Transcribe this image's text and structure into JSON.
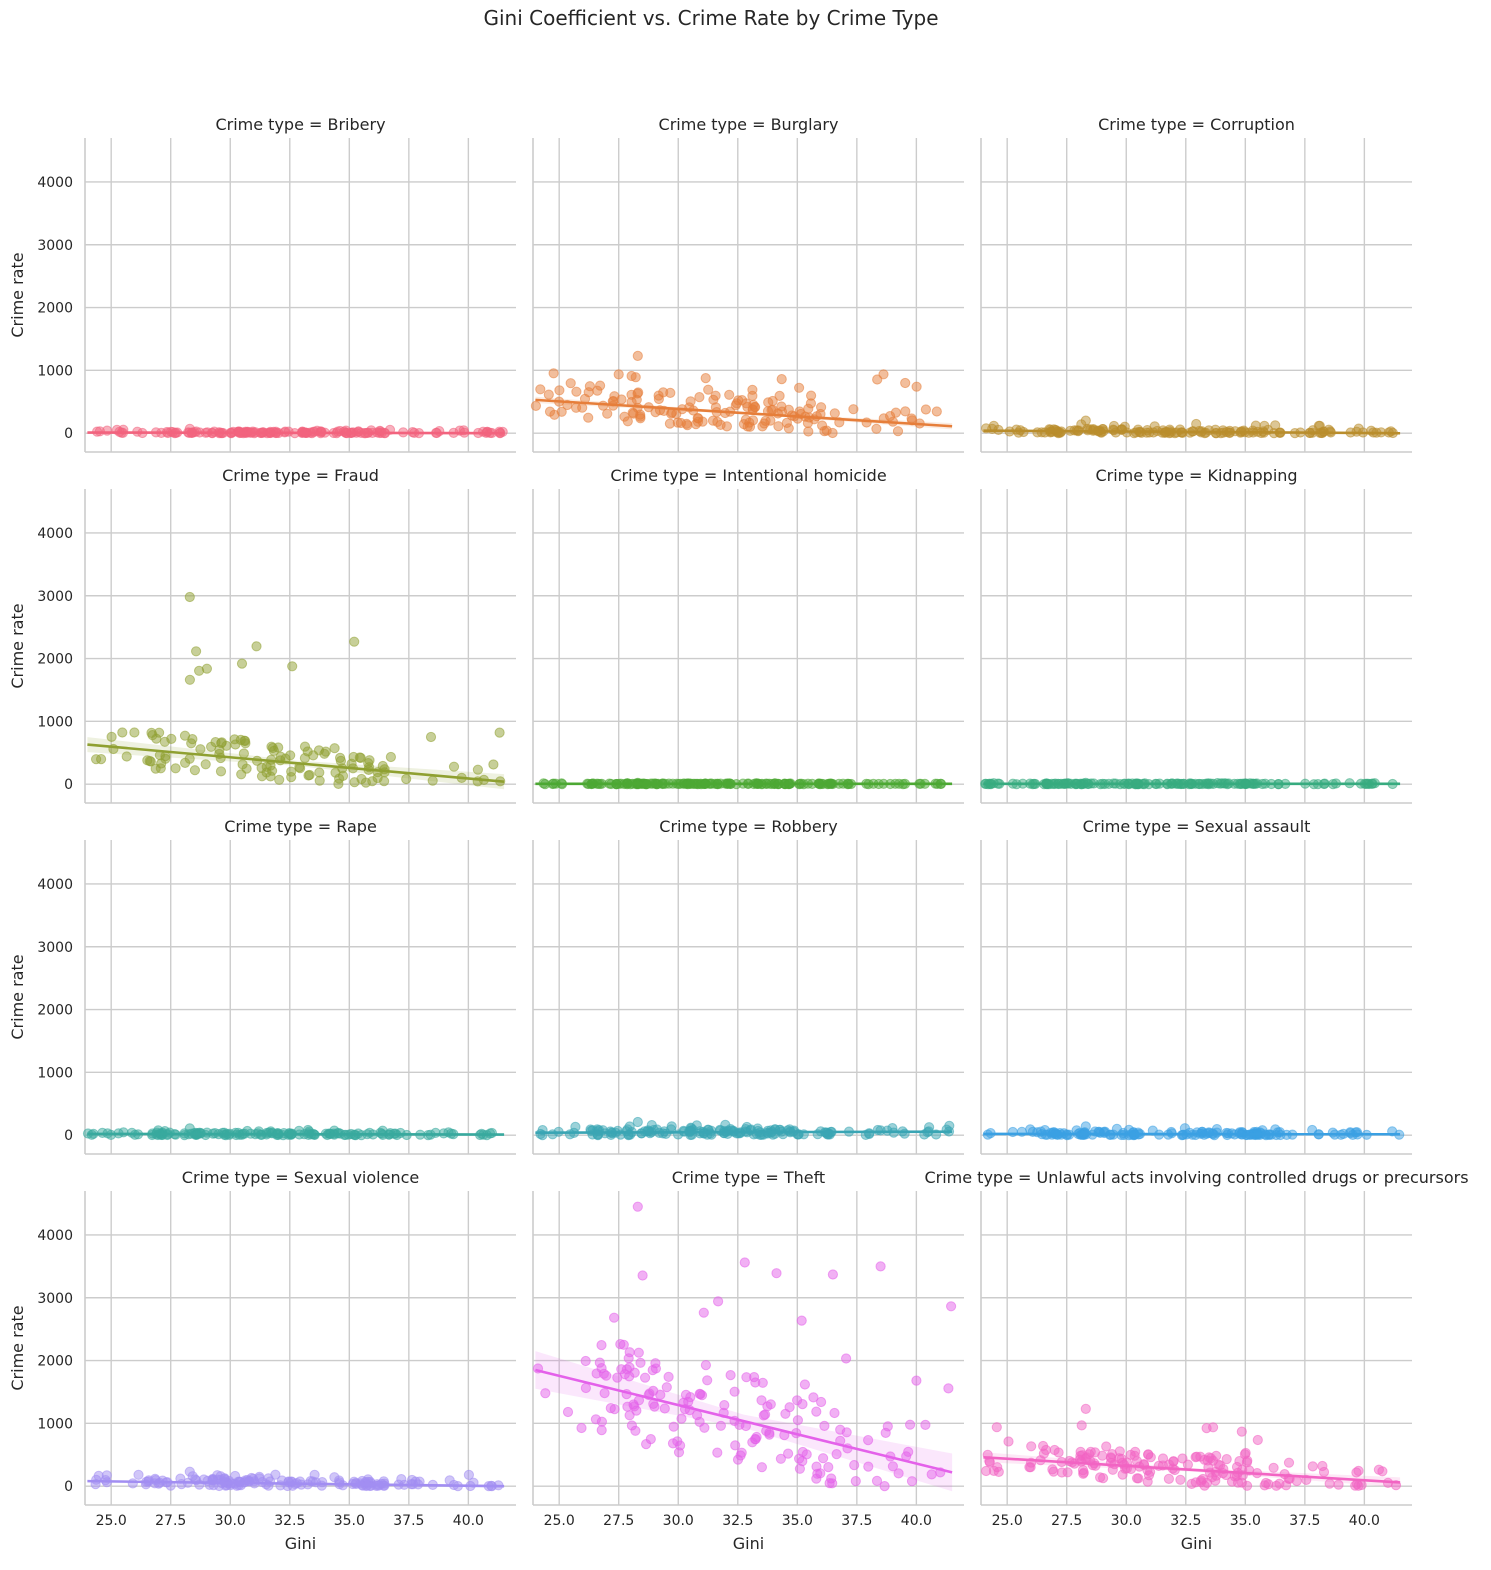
{
  "chart_data": {
    "type": "scatter",
    "subtype": "facet-grid scatter with linear regression fit and confidence band",
    "title": "Gini Coefficient vs. Crime Rate by Crime Type",
    "xlabel": "Gini",
    "ylabel": "Crime rate",
    "facet_prefix": "Crime type = ",
    "xlim": [
      23.9,
      42.0
    ],
    "ylim": [
      -300,
      4700
    ],
    "xticks": [
      25.0,
      27.5,
      30.0,
      32.5,
      35.0,
      37.5,
      40.0
    ],
    "xtick_labels": [
      "25.0",
      "27.5",
      "30.0",
      "32.5",
      "35.0",
      "37.5",
      "40.0"
    ],
    "yticks": [
      0,
      1000,
      2000,
      3000,
      4000
    ],
    "ytick_labels": [
      "0",
      "1000",
      "2000",
      "3000",
      "4000"
    ],
    "grid": true,
    "legend": "none",
    "panels": [
      {
        "label": "Bribery",
        "color": "#f2637e",
        "fit": [
          [
            24.0,
            10
          ],
          [
            41.5,
            0
          ]
        ],
        "band": 15,
        "spread": 25,
        "base": 10,
        "peak": 70,
        "n": 150,
        "seed": 11
      },
      {
        "label": "Burglary",
        "color": "#e67e3a",
        "fit": [
          [
            24.0,
            530
          ],
          [
            41.5,
            110
          ]
        ],
        "band": 50,
        "spread": 250,
        "base": 300,
        "peak": 1230,
        "n": 160,
        "seed": 23
      },
      {
        "label": "Corruption",
        "color": "#b98d2c",
        "fit": [
          [
            24.0,
            40
          ],
          [
            41.5,
            0
          ]
        ],
        "band": 15,
        "spread": 40,
        "base": 40,
        "peak": 200,
        "n": 150,
        "seed": 37
      },
      {
        "label": "Fraud",
        "color": "#8fa031",
        "fit": [
          [
            24.0,
            630
          ],
          [
            41.5,
            40
          ]
        ],
        "band": 120,
        "spread": 300,
        "base": 350,
        "peak": 2980,
        "n": 130,
        "seed": 41
      },
      {
        "label": "Intentional homicide",
        "color": "#4ca833",
        "fit": [
          [
            24.0,
            5
          ],
          [
            41.5,
            5
          ]
        ],
        "band": 5,
        "spread": 6,
        "base": 5,
        "peak": 20,
        "n": 170,
        "seed": 53
      },
      {
        "label": "Kidnapping",
        "color": "#37ab7f",
        "fit": [
          [
            24.0,
            5
          ],
          [
            41.5,
            5
          ]
        ],
        "band": 5,
        "spread": 6,
        "base": 5,
        "peak": 20,
        "n": 150,
        "seed": 67
      },
      {
        "label": "Rape",
        "color": "#38a99e",
        "fit": [
          [
            24.0,
            20
          ],
          [
            41.5,
            10
          ]
        ],
        "band": 10,
        "spread": 25,
        "base": 25,
        "peak": 110,
        "n": 150,
        "seed": 71
      },
      {
        "label": "Robbery",
        "color": "#3aa5b4",
        "fit": [
          [
            24.0,
            40
          ],
          [
            41.5,
            55
          ]
        ],
        "band": 15,
        "spread": 50,
        "base": 60,
        "peak": 210,
        "n": 160,
        "seed": 83
      },
      {
        "label": "Sexual assault",
        "color": "#3aa0e3",
        "fit": [
          [
            24.0,
            20
          ],
          [
            41.5,
            15
          ]
        ],
        "band": 10,
        "spread": 35,
        "base": 40,
        "peak": 140,
        "n": 150,
        "seed": 97
      },
      {
        "label": "Sexual violence",
        "color": "#a28ef2",
        "fit": [
          [
            24.0,
            80
          ],
          [
            41.5,
            0
          ]
        ],
        "band": 20,
        "spread": 60,
        "base": 60,
        "peak": 230,
        "n": 150,
        "seed": 101
      },
      {
        "label": "Theft",
        "color": "#e461ea",
        "fit": [
          [
            24.0,
            1850
          ],
          [
            41.5,
            220
          ]
        ],
        "band": 300,
        "spread": 750,
        "base": 1100,
        "peak": 4450,
        "n": 170,
        "seed": 113
      },
      {
        "label": "Unlawful acts involving controlled drugs or precursors",
        "color": "#f264c3",
        "fit": [
          [
            24.0,
            460
          ],
          [
            41.5,
            60
          ]
        ],
        "band": 80,
        "spread": 250,
        "base": 250,
        "peak": 1230,
        "n": 170,
        "seed": 127
      }
    ]
  }
}
